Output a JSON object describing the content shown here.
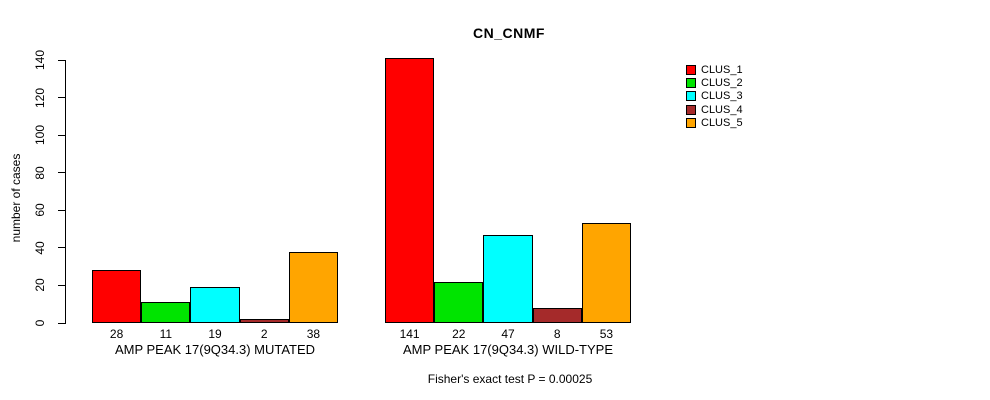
{
  "title": "CN_CNMF",
  "footer": "Fisher's exact test P = 0.00025",
  "chart_data": {
    "type": "bar",
    "title": "CN_CNMF",
    "xlabel": "",
    "ylabel": "number of cases",
    "ylim": [
      0,
      140
    ],
    "yticks": [
      0,
      20,
      40,
      60,
      80,
      100,
      120,
      140
    ],
    "grid": false,
    "legend_position": "right",
    "bar_border_color": "#000000",
    "categories": [
      "AMP PEAK 17(9Q34.3) MUTATED",
      "AMP PEAK 17(9Q34.3) WILD-TYPE"
    ],
    "series": [
      {
        "name": "CLUS_1",
        "color": "#FF0000",
        "values": [
          28,
          141
        ]
      },
      {
        "name": "CLUS_2",
        "color": "#00E400",
        "values": [
          11,
          22
        ]
      },
      {
        "name": "CLUS_3",
        "color": "#00FFFF",
        "values": [
          19,
          47
        ]
      },
      {
        "name": "CLUS_4",
        "color": "#A52A2A",
        "values": [
          2,
          8
        ]
      },
      {
        "name": "CLUS_5",
        "color": "#FFA500",
        "values": [
          38,
          53
        ]
      }
    ],
    "bar_value_labels": {
      "AMP PEAK 17(9Q34.3) MUTATED": [
        28,
        11,
        19,
        2,
        38
      ],
      "AMP PEAK 17(9Q34.3) WILD-TYPE": [
        141,
        22,
        47,
        8,
        53
      ]
    },
    "annotation": "Fisher's exact test P = 0.00025"
  },
  "legend": {
    "entries": [
      {
        "label": "CLUS_1",
        "color": "#FF0000"
      },
      {
        "label": "CLUS_2",
        "color": "#00E400"
      },
      {
        "label": "CLUS_3",
        "color": "#00FFFF"
      },
      {
        "label": "CLUS_4",
        "color": "#A52A2A"
      },
      {
        "label": "CLUS_5",
        "color": "#FFA500"
      }
    ]
  }
}
